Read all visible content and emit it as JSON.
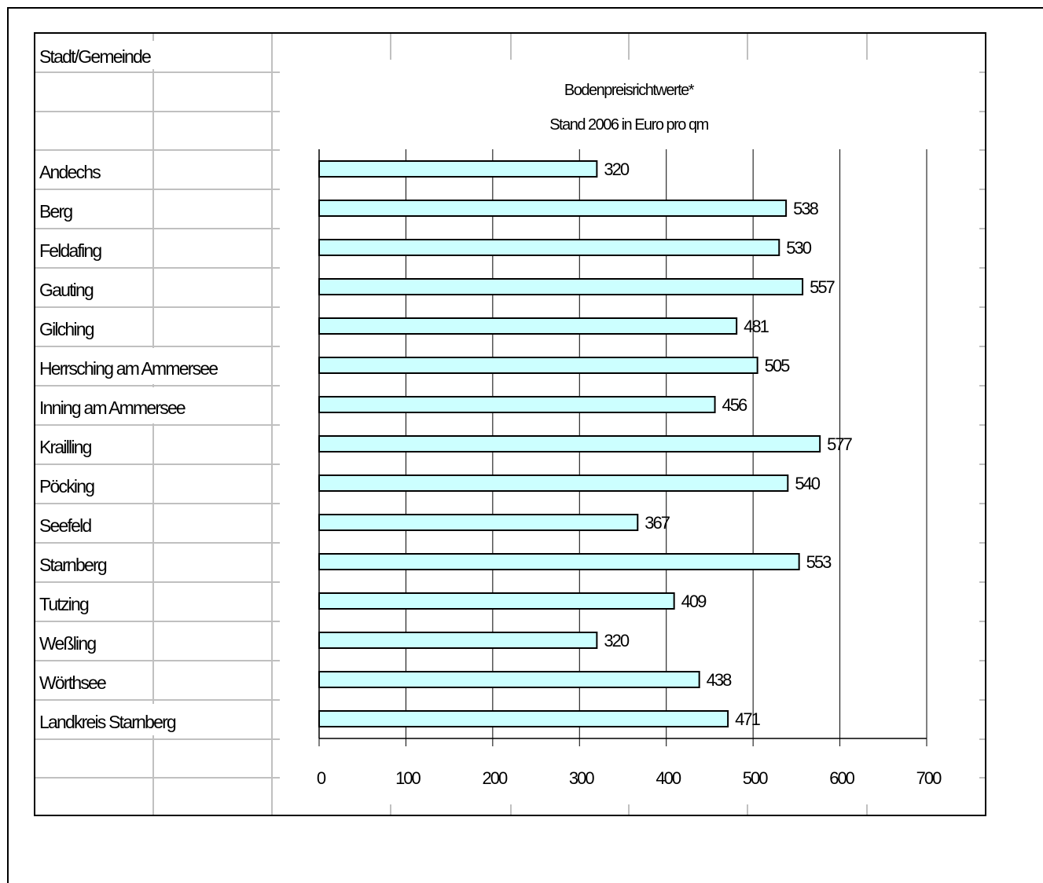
{
  "table": {
    "header": "Stadt/Gemeinde"
  },
  "chart_data": {
    "type": "bar",
    "orientation": "horizontal",
    "title": "Bodenpreisrichtwerte*",
    "subtitle": "Stand 2006  in Euro pro qm",
    "categories": [
      "Andechs",
      "Berg",
      "Feldafing",
      "Gauting",
      "Gilching",
      "Herrsching am Ammersee",
      "Inning am Ammersee",
      "Krailling",
      "Pöcking",
      "Seefeld",
      "Starnberg",
      "Tutzing",
      "Weßling",
      "Wörthsee",
      "Landkreis Starnberg"
    ],
    "values": [
      320,
      538,
      530,
      557,
      481,
      505,
      456,
      577,
      540,
      367,
      553,
      409,
      320,
      438,
      471
    ],
    "xlim": [
      0,
      700
    ],
    "xticks": [
      "0",
      "100",
      "200",
      "300",
      "400",
      "500",
      "600",
      "700"
    ],
    "grid": true,
    "bar_color": "#ccffff",
    "bar_border_color": "#000000"
  }
}
